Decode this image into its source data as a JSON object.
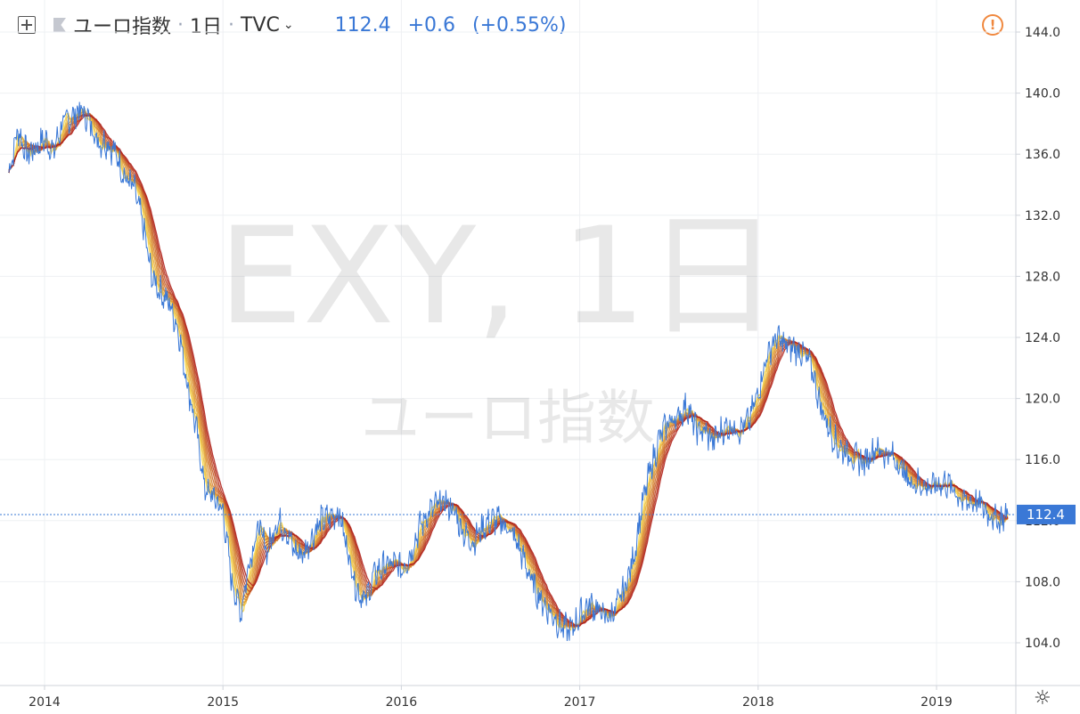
{
  "header": {
    "symbol_name": "ユーロ指数",
    "interval": "1日",
    "exchange": "TVC",
    "last": "112.4",
    "change": "+0.6",
    "change_pct": "(+0.55%)",
    "icons": [
      "crosshair-add-icon",
      "flag-icon",
      "chevron-down-icon",
      "alert-icon",
      "settings-icon"
    ]
  },
  "watermark": {
    "main": "EXY, 1日",
    "sub": "ユーロ指数"
  },
  "colors": {
    "price_line": "#3a78d6",
    "ribbon_fast": "#f5d547",
    "ribbon_slow": "#b0221c",
    "price_tag": "#3a78d6",
    "alert": "#f0883e"
  },
  "chart_data": {
    "type": "line",
    "title": "",
    "xlabel": "",
    "ylabel": "",
    "y_ticks": [
      "104.0",
      "108.0",
      "112.0",
      "116.0",
      "120.0",
      "124.0",
      "128.0",
      "132.0",
      "136.0",
      "140.0",
      "144.0"
    ],
    "x_ticks": [
      "2014",
      "2015",
      "2016",
      "2017",
      "2018",
      "2019"
    ],
    "ylim": [
      101.5,
      145.5
    ],
    "xlim": [
      2013.8,
      2019.45
    ],
    "last_price_label": "112.4",
    "grid": true,
    "ribbon": {
      "description_count": 10
    },
    "series": [
      {
        "x": [
          2013.8,
          2013.85,
          2013.9,
          2013.95,
          2014.0,
          2014.05,
          2014.1,
          2014.15,
          2014.2,
          2014.25,
          2014.3,
          2014.35,
          2014.4,
          2014.45,
          2014.5,
          2014.55,
          2014.6,
          2014.65,
          2014.7,
          2014.75,
          2014.8,
          2014.85,
          2014.9,
          2014.95,
          2015.0,
          2015.05,
          2015.1,
          2015.15,
          2015.2,
          2015.25,
          2015.3,
          2015.35,
          2015.4,
          2015.45,
          2015.5,
          2015.55,
          2015.6,
          2015.65,
          2015.7,
          2015.75,
          2015.8,
          2015.85,
          2015.9,
          2015.95,
          2016.0,
          2016.05,
          2016.1,
          2016.15,
          2016.2,
          2016.25,
          2016.3,
          2016.35,
          2016.4,
          2016.45,
          2016.5,
          2016.55,
          2016.6,
          2016.65,
          2016.7,
          2016.75,
          2016.8,
          2016.85,
          2016.9,
          2016.95,
          2017.0,
          2017.05,
          2017.1,
          2017.15,
          2017.2,
          2017.25,
          2017.3,
          2017.35,
          2017.4,
          2017.45,
          2017.5,
          2017.55,
          2017.6,
          2017.65,
          2017.7,
          2017.75,
          2017.8,
          2017.85,
          2017.9,
          2017.95,
          2018.0,
          2018.05,
          2018.1,
          2018.15,
          2018.2,
          2018.25,
          2018.3,
          2018.35,
          2018.4,
          2018.45,
          2018.5,
          2018.55,
          2018.6,
          2018.65,
          2018.7,
          2018.75,
          2018.8,
          2018.85,
          2018.9,
          2018.95,
          2019.0,
          2019.05,
          2019.1,
          2019.15,
          2019.2,
          2019.25,
          2019.3,
          2019.35,
          2019.4
        ],
        "values": [
          134.8,
          137.6,
          136.0,
          136.4,
          137.0,
          136.2,
          138.0,
          138.4,
          138.9,
          138.2,
          136.8,
          136.8,
          136.0,
          134.5,
          133.8,
          131.5,
          128.0,
          127.0,
          126.2,
          124.5,
          121.0,
          118.0,
          114.0,
          113.5,
          112.6,
          108.0,
          106.0,
          109.5,
          111.6,
          110.0,
          112.0,
          111.5,
          110.0,
          109.8,
          111.0,
          112.0,
          112.2,
          112.6,
          110.0,
          107.5,
          106.8,
          108.5,
          109.0,
          109.2,
          108.8,
          109.8,
          111.5,
          112.5,
          113.0,
          113.2,
          112.5,
          111.2,
          110.6,
          111.5,
          112.0,
          112.0,
          111.5,
          110.5,
          109.0,
          107.5,
          106.5,
          105.8,
          105.0,
          104.8,
          105.8,
          106.5,
          106.2,
          105.6,
          106.2,
          107.5,
          109.5,
          113.0,
          115.5,
          117.5,
          118.5,
          118.8,
          119.5,
          118.0,
          117.8,
          117.2,
          118.0,
          118.2,
          118.0,
          118.5,
          120.5,
          122.8,
          124.0,
          123.5,
          123.3,
          123.0,
          122.0,
          119.5,
          118.0,
          116.8,
          116.5,
          116.0,
          115.8,
          116.8,
          116.5,
          116.2,
          115.5,
          114.5,
          114.5,
          114.2,
          114.3,
          114.5,
          114.0,
          113.2,
          113.3,
          113.0,
          112.4,
          112.0,
          112.4
        ]
      }
    ]
  }
}
